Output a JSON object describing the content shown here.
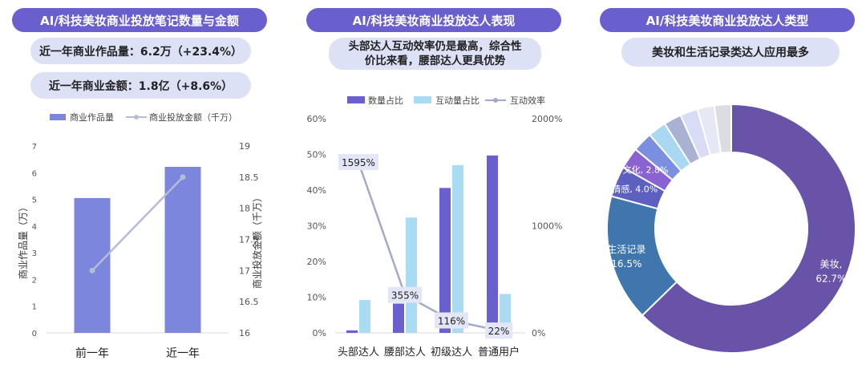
{
  "panel1": {
    "title": "AI/科技美妆商业投放笔记数量与金额",
    "stat1": "近一年商业作品量：6.2万（+23.4%）",
    "stat2": "近一年商业金额：1.8亿（+8.6%）"
  },
  "panel2": {
    "title": "AI/科技美妆商业投放达人表现",
    "note_line1": "头部达人互动效率仍是最高，综合性",
    "note_line2": "价比来看，腰部达人更具优势"
  },
  "panel3": {
    "title": "AI/科技美妆商业投放达人类型",
    "note": "美妆和生活记录类达人应用最多"
  },
  "chart_data": [
    {
      "type": "bar",
      "categories": [
        "前一年",
        "近一年"
      ],
      "series": [
        {
          "name": "商业作品量",
          "type": "bar",
          "axis": "left",
          "values": [
            5.05,
            6.22
          ],
          "color": "#7b86dc"
        },
        {
          "name": "商业投放金额（千万）",
          "type": "line",
          "axis": "right",
          "values": [
            17.0,
            18.5
          ],
          "color": "#b4bcd8"
        }
      ],
      "ylabel": "商业作品量（万）",
      "ylabel_right": "商业投放金额（千万）",
      "ylim": [
        0,
        7
      ],
      "yticks": [
        "0",
        "1",
        "2",
        "3",
        "4",
        "5",
        "6",
        "7"
      ],
      "ylim_right": [
        16,
        19
      ],
      "yticks_right": [
        "16",
        "16.5",
        "17",
        "17.5",
        "18",
        "18.5",
        "19"
      ],
      "legend": "top"
    },
    {
      "type": "bar",
      "categories": [
        "头部达人",
        "腰部达人",
        "初级达人",
        "普通用户"
      ],
      "series": [
        {
          "name": "数量占比",
          "type": "bar",
          "axis": "left",
          "values": [
            0.7,
            8.2,
            40.6,
            49.7
          ],
          "color": "#6a5fcf"
        },
        {
          "name": "互动量占比",
          "type": "bar",
          "axis": "left",
          "values": [
            9.2,
            32.3,
            47.0,
            10.9
          ],
          "color": "#a9dcf2"
        },
        {
          "name": "互动效率",
          "type": "line",
          "axis": "right",
          "values": [
            1595,
            355,
            116,
            22
          ],
          "labels": [
            "1595%",
            "355%",
            "116%",
            "22%"
          ],
          "color": "#a2aacb"
        }
      ],
      "ylim": [
        0,
        60
      ],
      "yticks": [
        "0%",
        "10%",
        "20%",
        "30%",
        "40%",
        "50%",
        "60%"
      ],
      "ylim_right": [
        0,
        2000
      ],
      "yticks_right": [
        "0%",
        "1000%",
        "2000%"
      ],
      "legend": "top"
    },
    {
      "type": "pie",
      "donut": true,
      "slices": [
        {
          "name": "美妆",
          "value": 62.7,
          "label_name": "美妆,",
          "label_value": "62.7%",
          "color": "#6853a9"
        },
        {
          "name": "生活记录",
          "value": 16.5,
          "label_name": "生活记录",
          "label_value": "16.5%",
          "color": "#3f76ad"
        },
        {
          "name": "情感",
          "value": 4.0,
          "label_name": "情感,",
          "label_value": "4.0%",
          "color": "#5d5fc1"
        },
        {
          "name": "文化",
          "value": 2.8,
          "label_name": "文化,",
          "label_value": "2.8%",
          "color": "#8a62d2"
        },
        {
          "name": "",
          "value": 2.6,
          "color": "#7b8fe0"
        },
        {
          "name": "",
          "value": 2.4,
          "color": "#a8d8f2"
        },
        {
          "name": "",
          "value": 2.3,
          "color": "#aab2d4"
        },
        {
          "name": "",
          "value": 2.3,
          "color": "#d9dcf5"
        },
        {
          "name": "",
          "value": 2.2,
          "color": "#e7e8f6"
        },
        {
          "name": "",
          "value": 2.2,
          "color": "#dcdde3"
        }
      ]
    }
  ]
}
